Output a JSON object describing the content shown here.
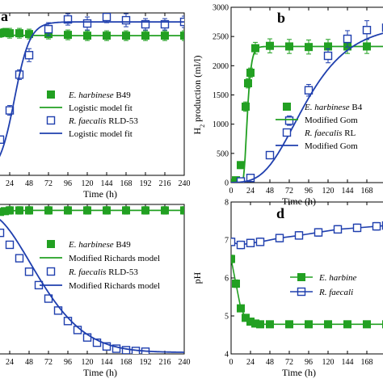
{
  "chart_data": [
    {
      "panel_label": "a",
      "type": "scatter",
      "xlabel": "Time (h)",
      "ylabel": "",
      "xlim": [
        0,
        240
      ],
      "ylim": [
        0,
        10
      ],
      "xticks": [
        "24",
        "48",
        "72",
        "96",
        "120",
        "144",
        "168",
        "192",
        "216",
        "240"
      ],
      "legend_position": "lower-right",
      "series": [
        {
          "name": "E. harbinese B49",
          "marker": "filled-square",
          "color": "#22a022",
          "points": [
            [
              0,
              8.5
            ],
            [
              6,
              8.7
            ],
            [
              12,
              8.75
            ],
            [
              18,
              8.8
            ],
            [
              24,
              8.75
            ],
            [
              36,
              8.75
            ],
            [
              48,
              8.7
            ],
            [
              72,
              8.7
            ],
            [
              96,
              8.65
            ],
            [
              120,
              8.6
            ],
            [
              144,
              8.6
            ],
            [
              168,
              8.6
            ],
            [
              192,
              8.6
            ],
            [
              216,
              8.6
            ],
            [
              240,
              8.6
            ]
          ],
          "errors": [
            0,
            0.2,
            0.25,
            0.25,
            0.3,
            0.3,
            0.3,
            0.3,
            0.3,
            0.3,
            0.3,
            0.3,
            0.3,
            0.3,
            0.3
          ]
        },
        {
          "name": "Logistic model fit",
          "style": "line",
          "color": "#22a022",
          "fit_of": 0
        },
        {
          "name": "R. faecalis RLD-53",
          "marker": "open-square",
          "color": "#1f3fae",
          "points": [
            [
              12,
              2.2
            ],
            [
              24,
              4.0
            ],
            [
              36,
              6.2
            ],
            [
              48,
              7.4
            ],
            [
              72,
              9.0
            ],
            [
              96,
              9.6
            ],
            [
              120,
              9.35
            ],
            [
              144,
              9.75
            ],
            [
              168,
              9.55
            ],
            [
              192,
              9.3
            ],
            [
              216,
              9.3
            ],
            [
              240,
              9.45
            ]
          ],
          "errors": [
            0,
            0.3,
            0.3,
            0.4,
            0.4,
            0.35,
            0.4,
            0.35,
            0.4,
            0.35,
            0.35,
            0.35
          ]
        },
        {
          "name": "Logistic model fit",
          "style": "line",
          "color": "#1f3fae",
          "fit_of": 2
        }
      ]
    },
    {
      "panel_label": "b",
      "type": "scatter",
      "xlabel": "Time (h)",
      "ylabel": "H",
      "ylabel_sub": "2",
      "ylabel_rest": " production (ml/l)",
      "xlim": [
        0,
        192
      ],
      "ylim": [
        0,
        3000
      ],
      "xticks": [
        "0",
        "24",
        "48",
        "72",
        "96",
        "120",
        "144",
        "168"
      ],
      "yticks": [
        "0",
        "500",
        "1000",
        "1500",
        "2000",
        "2500",
        "3000"
      ],
      "legend_position": "lower-right",
      "series": [
        {
          "name": "E. harbinese B4",
          "marker": "filled-square",
          "color": "#22a022",
          "points": [
            [
              0,
              0
            ],
            [
              6,
              40
            ],
            [
              12,
              300
            ],
            [
              18,
              1300
            ],
            [
              21,
              1700
            ],
            [
              24,
              1880
            ],
            [
              30,
              2300
            ],
            [
              48,
              2340
            ],
            [
              72,
              2330
            ],
            [
              96,
              2320
            ],
            [
              120,
              2330
            ],
            [
              144,
              2330
            ],
            [
              168,
              2330
            ]
          ],
          "errors": [
            0,
            30,
            60,
            80,
            80,
            80,
            100,
            120,
            120,
            120,
            120,
            120,
            120
          ]
        },
        {
          "name": "Modified Gom",
          "style": "line",
          "color": "#22a022",
          "fit_of": 0
        },
        {
          "name": "R. faecalis RL",
          "marker": "open-square",
          "color": "#1f3fae",
          "points": [
            [
              12,
              20
            ],
            [
              24,
              80
            ],
            [
              48,
              470
            ],
            [
              72,
              1060
            ],
            [
              96,
              1580
            ],
            [
              120,
              2170
            ],
            [
              144,
              2460
            ],
            [
              168,
              2610
            ],
            [
              192,
              2650
            ]
          ],
          "errors": [
            0,
            40,
            60,
            80,
            100,
            120,
            140,
            160,
            160
          ]
        },
        {
          "name": "Modified Gom",
          "style": "line",
          "color": "#1f3fae",
          "fit_of": 2
        }
      ]
    },
    {
      "panel_label": "",
      "type": "scatter",
      "xlabel": "Time (h)",
      "ylabel": "",
      "xlim": [
        0,
        240
      ],
      "ylim": [
        0,
        10
      ],
      "xticks": [
        "24",
        "48",
        "72",
        "96",
        "120",
        "144",
        "168",
        "192",
        "216",
        "240"
      ],
      "legend_position": "right",
      "series": [
        {
          "name": "E. harbinese B49",
          "marker": "filled-square",
          "color": "#22a022",
          "points": [
            [
              0,
              8.9
            ],
            [
              6,
              9.3
            ],
            [
              12,
              9.5
            ],
            [
              18,
              9.55
            ],
            [
              24,
              9.6
            ],
            [
              36,
              9.6
            ],
            [
              48,
              9.6
            ],
            [
              72,
              9.6
            ],
            [
              96,
              9.6
            ],
            [
              120,
              9.6
            ],
            [
              144,
              9.6
            ],
            [
              168,
              9.6
            ],
            [
              192,
              9.6
            ],
            [
              216,
              9.6
            ],
            [
              240,
              9.6
            ]
          ],
          "errors": [
            0.2,
            0.2,
            0.2,
            0.2,
            0.25,
            0.25,
            0.25,
            0.25,
            0.25,
            0.25,
            0.25,
            0.25,
            0.25,
            0.25,
            0.25
          ]
        },
        {
          "name": "Modified Richards model",
          "style": "line",
          "color": "#22a022",
          "fit_of": 0
        },
        {
          "name": "R. faecalis RLD-53",
          "marker": "open-square",
          "color": "#1f3fae",
          "points": [
            [
              0,
              9.2
            ],
            [
              12,
              8.1
            ],
            [
              24,
              7.3
            ],
            [
              36,
              6.4
            ],
            [
              48,
              5.5
            ],
            [
              60,
              4.6
            ],
            [
              72,
              3.7
            ],
            [
              84,
              2.9
            ],
            [
              96,
              2.2
            ],
            [
              108,
              1.6
            ],
            [
              120,
              1.1
            ],
            [
              132,
              0.75
            ],
            [
              144,
              0.5
            ],
            [
              156,
              0.35
            ],
            [
              168,
              0.25
            ],
            [
              180,
              0.2
            ],
            [
              192,
              0.15
            ]
          ],
          "errors": [
            0.2,
            0.2,
            0.2,
            0.2,
            0.2,
            0.2,
            0.2,
            0.2,
            0.2,
            0.2,
            0.2,
            0.2,
            0.2,
            0.15,
            0.15,
            0.15,
            0.15
          ]
        },
        {
          "name": "Modified Richards model",
          "style": "line",
          "color": "#1f3fae",
          "fit_of": 2
        }
      ]
    },
    {
      "panel_label": "d",
      "type": "scatter",
      "xlabel": "Time (h)",
      "ylabel": "pH",
      "xlim": [
        0,
        192
      ],
      "ylim": [
        4,
        8
      ],
      "xticks": [
        "0",
        "24",
        "48",
        "72",
        "96",
        "120",
        "144",
        "168"
      ],
      "yticks": [
        "4",
        "5",
        "6",
        "7",
        "8"
      ],
      "legend_position": "middle-right",
      "series": [
        {
          "name": "E. harbine",
          "marker": "filled-square",
          "color": "#22a022",
          "points": [
            [
              0,
              6.5
            ],
            [
              6,
              5.85
            ],
            [
              12,
              5.2
            ],
            [
              18,
              4.95
            ],
            [
              24,
              4.85
            ],
            [
              30,
              4.8
            ],
            [
              36,
              4.78
            ],
            [
              48,
              4.78
            ],
            [
              72,
              4.78
            ],
            [
              96,
              4.78
            ],
            [
              120,
              4.78
            ],
            [
              144,
              4.78
            ],
            [
              168,
              4.78
            ],
            [
              192,
              4.78
            ]
          ],
          "errors": [
            0.1,
            0.1,
            0.08,
            0.06,
            0.05,
            0.05,
            0.05,
            0.05,
            0.05,
            0.05,
            0.05,
            0.05,
            0.05,
            0.05
          ]
        },
        {
          "name": "R. faecali",
          "marker": "open-square",
          "color": "#1f3fae",
          "points": [
            [
              0,
              6.95
            ],
            [
              12,
              6.87
            ],
            [
              24,
              6.92
            ],
            [
              36,
              6.95
            ],
            [
              60,
              7.05
            ],
            [
              84,
              7.12
            ],
            [
              108,
              7.2
            ],
            [
              132,
              7.28
            ],
            [
              156,
              7.32
            ],
            [
              180,
              7.36
            ],
            [
              192,
              7.38
            ]
          ],
          "errors": [
            0.1,
            0.1,
            0.1,
            0.1,
            0.1,
            0.1,
            0.1,
            0.1,
            0.1,
            0.1,
            0.1
          ]
        }
      ]
    }
  ]
}
